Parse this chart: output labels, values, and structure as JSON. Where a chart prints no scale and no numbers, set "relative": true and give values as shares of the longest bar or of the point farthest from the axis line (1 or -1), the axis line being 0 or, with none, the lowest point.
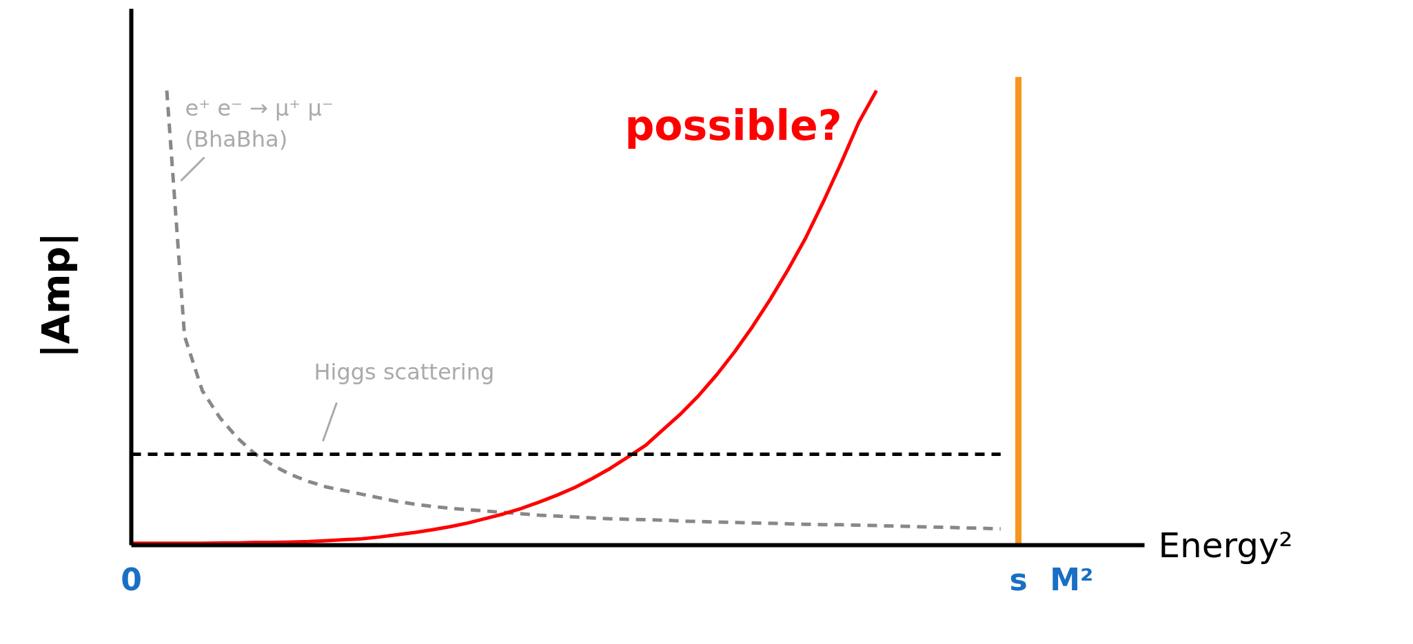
{
  "chart_data": {
    "type": "line",
    "relative": true,
    "ylabel": "|Amp|",
    "xlabel": "Energy²",
    "categories": [
      "0",
      null,
      null,
      null,
      null,
      null,
      null,
      null,
      null,
      null,
      null,
      null,
      null,
      null,
      null,
      null,
      null,
      null,
      null,
      null,
      null,
      null,
      null,
      null,
      null,
      null,
      null,
      null,
      null,
      null,
      null,
      null,
      null,
      null,
      null,
      null,
      null,
      null,
      null,
      null,
      null,
      null,
      null,
      null,
      null,
      null,
      null,
      null,
      null,
      null,
      "s",
      null,
      null,
      "M²"
    ],
    "series": [
      {
        "color": "#888888",
        "line_style": "dashed",
        "values": [
          null,
          null,
          1.0,
          0.46,
          0.34,
          0.28,
          0.235,
          0.2,
          0.175,
          0.155,
          0.14,
          0.128,
          0.12,
          0.112,
          0.104,
          0.096,
          0.09,
          0.085,
          0.081,
          0.078,
          0.075,
          0.072,
          0.069,
          0.066,
          0.064,
          0.062,
          0.06,
          0.058,
          0.057,
          0.056,
          0.055,
          0.053,
          0.052,
          0.051,
          0.05,
          0.049,
          0.048,
          0.047,
          0.046,
          0.045,
          0.045,
          0.044,
          0.043,
          0.042,
          0.041,
          0.04,
          0.039,
          0.038,
          0.037,
          0.036,
          null,
          null,
          null,
          null
        ]
      },
      {
        "name": "possible?",
        "color": "#ff0000",
        "line_style": "solid",
        "values": [
          0.004,
          0.004,
          0.004,
          0.004,
          0.004,
          0.005,
          0.005,
          0.006,
          0.006,
          0.007,
          0.008,
          0.01,
          0.012,
          0.014,
          0.018,
          0.023,
          0.028,
          0.034,
          0.041,
          0.049,
          0.059,
          0.069,
          0.081,
          0.095,
          0.11,
          0.127,
          0.147,
          0.169,
          0.194,
          0.22,
          0.255,
          0.29,
          0.33,
          0.375,
          0.425,
          0.48,
          0.54,
          0.605,
          0.675,
          0.755,
          0.84,
          0.93,
          1.0,
          null,
          null,
          null,
          null,
          null,
          null,
          null,
          null,
          null,
          null,
          null
        ]
      },
      {
        "color": "#000000",
        "line_style": "dashed",
        "values": [
          0.2,
          0.2,
          0.2,
          0.2,
          0.2,
          0.2,
          0.2,
          0.2,
          0.2,
          0.2,
          0.2,
          0.2,
          0.2,
          0.2,
          0.2,
          0.2,
          0.2,
          0.2,
          0.2,
          0.2,
          0.2,
          0.2,
          0.2,
          0.2,
          0.2,
          0.2,
          0.2,
          0.2,
          0.2,
          0.2,
          0.2,
          0.2,
          0.2,
          0.2,
          0.2,
          0.2,
          0.2,
          0.2,
          0.2,
          0.2,
          0.2,
          0.2,
          0.2,
          0.2,
          0.2,
          0.2,
          0.2,
          0.2,
          0.2,
          0.2,
          null,
          null,
          null,
          null
        ]
      }
    ],
    "ref_lines": [
      {
        "axis": "x",
        "value": "s",
        "color": "#f7941d"
      }
    ],
    "annotations": [
      "e⁺ e⁻ → μ⁺ μ⁻\n(BhaBha)",
      "Higgs scattering"
    ]
  }
}
